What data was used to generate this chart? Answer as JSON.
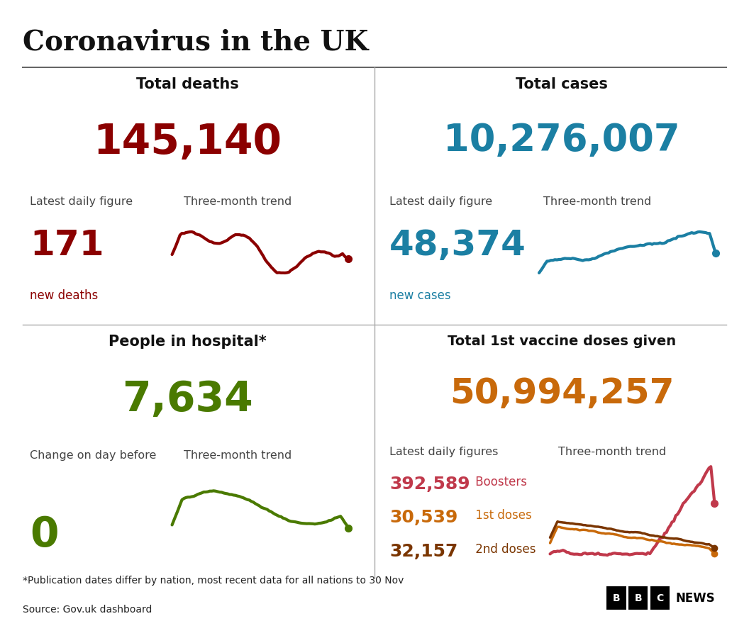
{
  "title": "Coronavirus in the UK",
  "bg_color": "#ffffff",
  "title_color": "#111111",
  "label_color": "#444444",
  "top_left": {
    "section_title": "Total deaths",
    "total_value": "145,140",
    "total_color": "#8b0000",
    "label1": "Latest daily figure",
    "label2": "Three-month trend",
    "daily_value": "171",
    "daily_label": "new deaths",
    "value_color": "#8b0000",
    "trend_color": "#8b0000"
  },
  "top_right": {
    "section_title": "Total cases",
    "total_value": "10,276,007",
    "total_color": "#1b7fa3",
    "label1": "Latest daily figure",
    "label2": "Three-month trend",
    "daily_value": "48,374",
    "daily_label": "new cases",
    "value_color": "#1b7fa3",
    "trend_color": "#1b7fa3"
  },
  "bottom_left": {
    "section_title": "People in hospital*",
    "total_value": "7,634",
    "total_color": "#4a7a00",
    "label1": "Change on day before",
    "label2": "Three-month trend",
    "daily_value": "0",
    "value_color": "#4a7a00",
    "trend_color": "#4a7a00"
  },
  "bottom_right": {
    "section_title": "Total 1st vaccine doses given",
    "total_value": "50,994,257",
    "total_color": "#c8690a",
    "label1": "Latest daily figures",
    "label2": "Three-month trend",
    "boosters_value": "392,589",
    "boosters_label": " Boosters",
    "boosters_color": "#c0394b",
    "doses1_value": "30,539",
    "doses1_label": " 1st doses",
    "doses1_color": "#c8690a",
    "doses2_value": "32,157",
    "doses2_label": " 2nd doses",
    "doses2_color": "#7a3500"
  },
  "footnote1": "*Publication dates differ by nation, most recent data for all nations to 30 Nov",
  "footnote2": "Source: Gov.uk dashboard",
  "text_color": "#222222"
}
